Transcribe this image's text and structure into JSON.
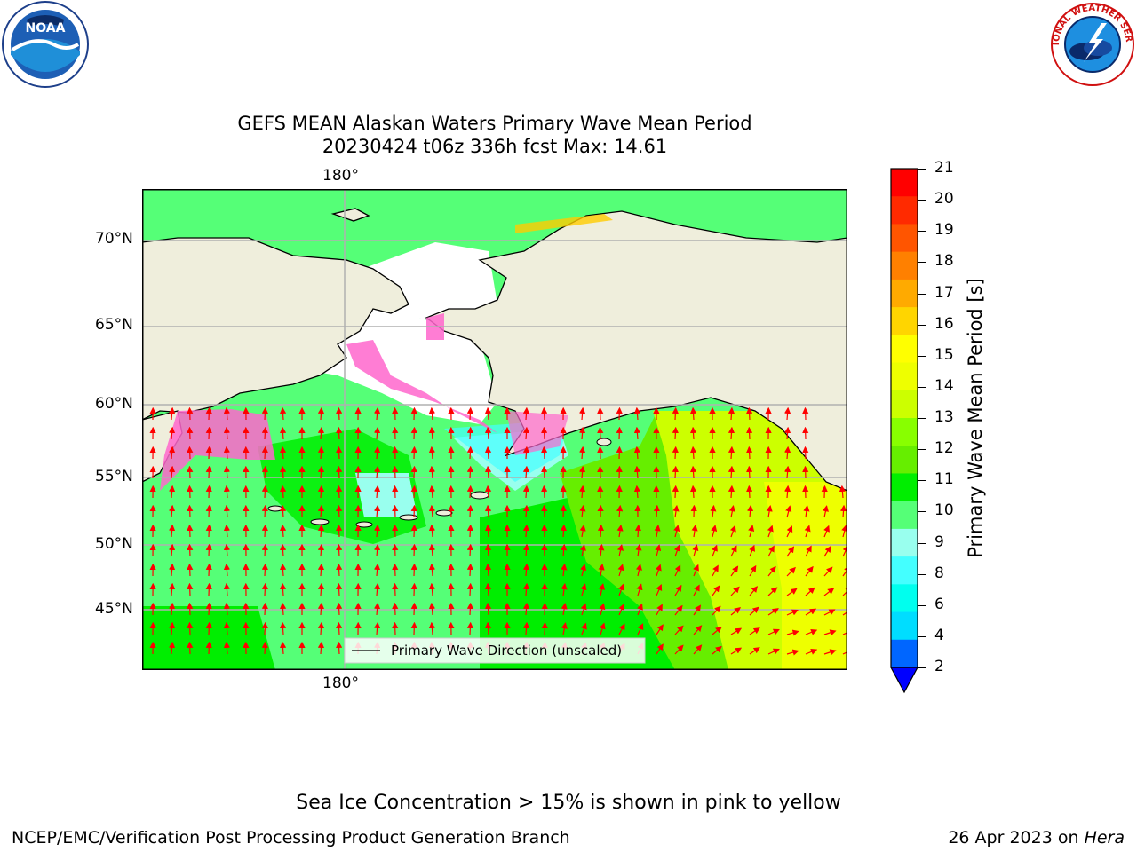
{
  "header": {
    "title_line1": "GEFS MEAN Alaskan Waters Primary Wave Mean Period",
    "title_line2": "20230424 t06z 336h fcst   Max: 14.61"
  },
  "logos": {
    "left": {
      "name": "noaa-logo",
      "text": "NOAA"
    },
    "right": {
      "name": "nws-logo",
      "ring_text": "NATIONAL WEATHER SERVICE"
    }
  },
  "map": {
    "lon_label_top": "180°",
    "lon_label_bottom": "180°",
    "lat_labels": [
      "70°N",
      "65°N",
      "60°N",
      "55°N",
      "50°N",
      "45°N"
    ],
    "legend_label": "Primary Wave Direction (unscaled)",
    "colors": {
      "land": "#efeedc",
      "ice_free_sea": "#ffffff",
      "grid": "#b0b0b0",
      "arrow": "#ff0000"
    }
  },
  "colorbar": {
    "label": "Primary Wave Mean Period [s]",
    "ticks": [
      "21",
      "20",
      "19",
      "18",
      "17",
      "16",
      "15",
      "14",
      "13",
      "12",
      "11",
      "10",
      "9",
      "8",
      "6",
      "4",
      "2"
    ],
    "colors_top_to_bottom": [
      "#ff0000",
      "#ff2a00",
      "#ff5500",
      "#ff8000",
      "#ffaa00",
      "#ffd500",
      "#ffff00",
      "#eeff00",
      "#ccff00",
      "#88ff00",
      "#66ee00",
      "#00ee00",
      "#55ff77",
      "#99ffee",
      "#44ffff",
      "#00ffee",
      "#00ddff",
      "#0066ff"
    ],
    "extend_color": "#0000ff"
  },
  "footer": {
    "ice_note": "Sea Ice Concentration > 15% is shown in pink to yellow",
    "branch": "NCEP/EMC/Verification Post Processing Product Generation Branch",
    "date_prefix": "26 Apr 2023 on ",
    "host": "Hera"
  }
}
